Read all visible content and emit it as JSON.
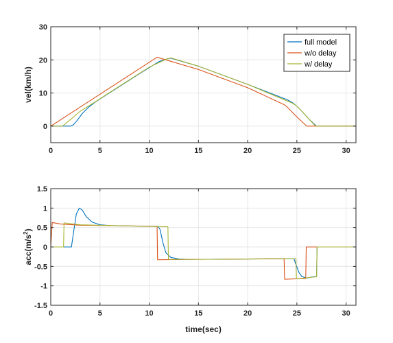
{
  "colors": {
    "full_model": "#0072BD",
    "wo_delay": "#D95319",
    "w_delay": "#A8B530",
    "grid": "#e6e6e6",
    "axis": "#262626"
  },
  "chart_data": [
    {
      "type": "line",
      "title": "",
      "xlabel": "",
      "ylabel": "vel(km/h)",
      "xlim": [
        0,
        31
      ],
      "ylim": [
        -5,
        30
      ],
      "xticks": [
        0,
        5,
        10,
        15,
        20,
        25,
        30
      ],
      "yticks": [
        0,
        10,
        20,
        30
      ],
      "grid": true,
      "legend_position": "top-right",
      "series": [
        {
          "name": "full model",
          "color_key": "full_model",
          "points": [
            [
              0,
              0
            ],
            [
              2,
              0
            ],
            [
              2.3,
              0.4
            ],
            [
              2.7,
              1.8
            ],
            [
              3.2,
              3.8
            ],
            [
              3.8,
              5.6
            ],
            [
              4.5,
              7.2
            ],
            [
              5,
              8.2
            ],
            [
              7,
              12
            ],
            [
              9,
              15.8
            ],
            [
              11,
              19.5
            ],
            [
              11.8,
              20.3
            ],
            [
              12.2,
              20.5
            ],
            [
              15,
              18.1
            ],
            [
              20,
              12.6
            ],
            [
              24,
              8
            ],
            [
              24.5,
              7.2
            ],
            [
              25,
              6
            ],
            [
              25.6,
              4.2
            ],
            [
              26.2,
              2.2
            ],
            [
              26.8,
              0.5
            ],
            [
              27,
              0
            ],
            [
              31,
              0
            ]
          ]
        },
        {
          "name": "w/o delay",
          "color_key": "wo_delay",
          "points": [
            [
              0,
              0
            ],
            [
              10.8,
              20.8
            ],
            [
              15,
              17.1
            ],
            [
              20,
              11.6
            ],
            [
              23.7,
              6.5
            ],
            [
              24,
              5.8
            ],
            [
              25,
              2.8
            ],
            [
              26,
              0
            ],
            [
              31,
              0
            ]
          ]
        },
        {
          "name": "w/ delay",
          "color_key": "w_delay",
          "points": [
            [
              0,
              0
            ],
            [
              1.2,
              0
            ],
            [
              2,
              2
            ],
            [
              3,
              4.5
            ],
            [
              4.5,
              7.3
            ],
            [
              6,
              10.2
            ],
            [
              8,
              14
            ],
            [
              10,
              17.8
            ],
            [
              11.8,
              20.3
            ],
            [
              12.2,
              20.6
            ],
            [
              15,
              18.1
            ],
            [
              20,
              12.6
            ],
            [
              24.5,
              7
            ],
            [
              25,
              6
            ],
            [
              25.6,
              4.2
            ],
            [
              26.2,
              2.2
            ],
            [
              26.8,
              0.3
            ],
            [
              27,
              0
            ],
            [
              31,
              0
            ]
          ]
        }
      ]
    },
    {
      "type": "line",
      "title": "",
      "xlabel": "time(sec)",
      "ylabel_main": "acc(m/s",
      "ylabel_sup": "2",
      "ylabel_tail": ")",
      "xlim": [
        0,
        31
      ],
      "ylim": [
        -1.5,
        1.5
      ],
      "xticks": [
        0,
        5,
        10,
        15,
        20,
        25,
        30
      ],
      "yticks": [
        -1.5,
        -1,
        -0.5,
        0,
        0.5,
        1,
        1.5
      ],
      "grid": true,
      "series": [
        {
          "name": "full model",
          "color_key": "full_model",
          "points": [
            [
              0,
              0
            ],
            [
              2.1,
              0
            ],
            [
              2.3,
              0.35
            ],
            [
              2.6,
              0.85
            ],
            [
              2.9,
              1.0
            ],
            [
              3.2,
              0.95
            ],
            [
              3.6,
              0.78
            ],
            [
              4.2,
              0.64
            ],
            [
              5,
              0.57
            ],
            [
              6,
              0.55
            ],
            [
              8,
              0.54
            ],
            [
              10.9,
              0.53
            ],
            [
              11.1,
              0.45
            ],
            [
              11.4,
              0.1
            ],
            [
              11.7,
              -0.15
            ],
            [
              12.2,
              -0.27
            ],
            [
              13,
              -0.31
            ],
            [
              14,
              -0.32
            ],
            [
              20,
              -0.31
            ],
            [
              24.7,
              -0.3
            ],
            [
              24.9,
              -0.45
            ],
            [
              25.2,
              -0.65
            ],
            [
              25.5,
              -0.76
            ],
            [
              26,
              -0.8
            ],
            [
              26.6,
              -0.77
            ],
            [
              27,
              -0.76
            ],
            [
              27.05,
              0
            ],
            [
              31,
              0
            ]
          ]
        },
        {
          "name": "w/o delay",
          "color_key": "wo_delay",
          "points": [
            [
              0,
              0
            ],
            [
              0.15,
              0.63
            ],
            [
              1,
              0.59
            ],
            [
              3,
              0.56
            ],
            [
              6,
              0.55
            ],
            [
              10.8,
              0.53
            ],
            [
              10.85,
              -0.33
            ],
            [
              15,
              -0.32
            ],
            [
              20,
              -0.31
            ],
            [
              23.7,
              -0.3
            ],
            [
              23.75,
              -0.83
            ],
            [
              25.9,
              -0.81
            ],
            [
              25.95,
              0
            ],
            [
              31,
              0
            ]
          ]
        },
        {
          "name": "w/ delay",
          "color_key": "w_delay",
          "points": [
            [
              0,
              0
            ],
            [
              1.3,
              0
            ],
            [
              1.35,
              0.62
            ],
            [
              3,
              0.57
            ],
            [
              6,
              0.55
            ],
            [
              11.9,
              0.52
            ],
            [
              11.95,
              -0.32
            ],
            [
              15,
              -0.32
            ],
            [
              20,
              -0.31
            ],
            [
              24.9,
              -0.3
            ],
            [
              24.95,
              -0.82
            ],
            [
              26.9,
              -0.77
            ],
            [
              27,
              -0.77
            ],
            [
              27.05,
              0
            ],
            [
              31,
              0
            ]
          ]
        }
      ]
    }
  ]
}
